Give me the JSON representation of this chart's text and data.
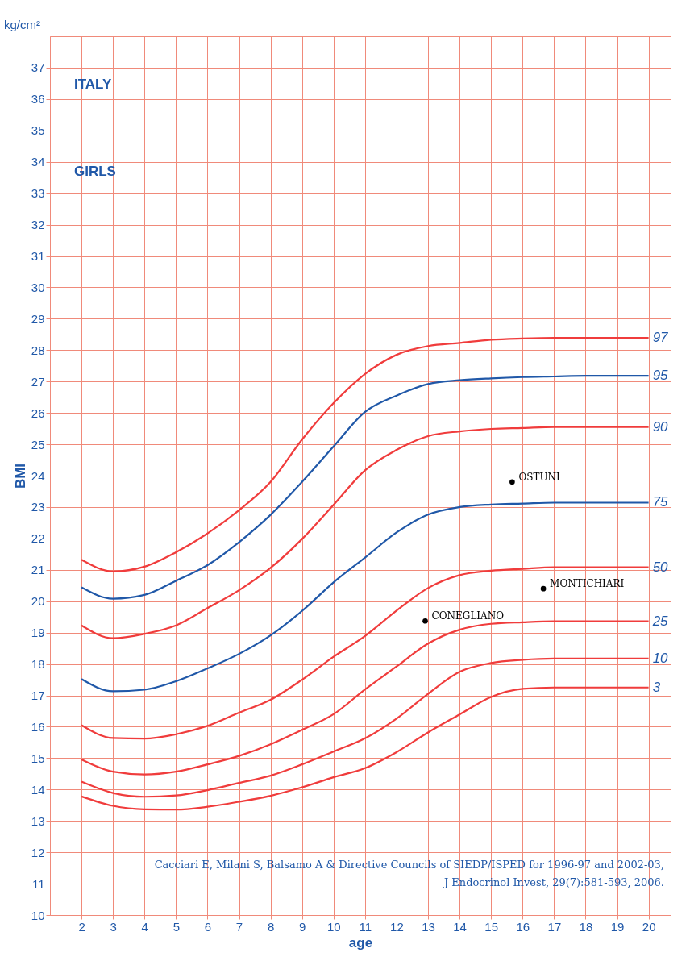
{
  "chart_data": {
    "type": "line",
    "xlabel": "age",
    "ylabel": "BMI",
    "annotations": [
      "kg/cm²",
      "ITALY",
      "GIRLS",
      "Cacciari E, Milani S, Balsamo A & Directive Councils of SIEDP/ISPED for 1996-97 and 2002-03,",
      "J Endocrinol Invest, 29(7):581-593, 2006."
    ],
    "x": [
      2,
      3,
      4,
      5,
      6,
      7,
      8,
      9,
      10,
      11,
      12,
      13,
      14,
      15,
      16,
      17,
      18,
      19,
      20
    ],
    "series": [
      {
        "name": "97",
        "color": "#f03c3c",
        "values": [
          21.32,
          20.95,
          21.1,
          21.56,
          22.16,
          22.9,
          23.8,
          25.15,
          26.31,
          27.24,
          27.85,
          28.13,
          28.23,
          28.33,
          28.37,
          28.39,
          28.39,
          28.39,
          28.39
        ]
      },
      {
        "name": "95",
        "color": "#2058a8",
        "values": [
          20.44,
          20.08,
          20.2,
          20.65,
          21.15,
          21.88,
          22.75,
          23.8,
          24.93,
          26.03,
          26.55,
          26.92,
          27.04,
          27.1,
          27.14,
          27.16,
          27.18,
          27.18,
          27.18
        ]
      },
      {
        "name": "90",
        "color": "#f03c3c",
        "values": [
          19.23,
          18.82,
          18.96,
          19.23,
          19.78,
          20.35,
          21.06,
          21.98,
          23.07,
          24.17,
          24.82,
          25.26,
          25.41,
          25.49,
          25.52,
          25.55,
          25.55,
          25.55,
          25.55
        ]
      },
      {
        "name": "75",
        "color": "#2058a8",
        "values": [
          17.52,
          17.13,
          17.18,
          17.45,
          17.86,
          18.32,
          18.91,
          19.69,
          20.6,
          21.39,
          22.19,
          22.76,
          23.0,
          23.08,
          23.11,
          23.14,
          23.14,
          23.14,
          23.14
        ]
      },
      {
        "name": "50",
        "color": "#f03c3c",
        "values": [
          16.05,
          15.64,
          15.62,
          15.76,
          16.03,
          16.45,
          16.86,
          17.5,
          18.23,
          18.89,
          19.7,
          20.42,
          20.83,
          20.97,
          21.03,
          21.08,
          21.08,
          21.08,
          21.08
        ]
      },
      {
        "name": "25",
        "color": "#f03c3c",
        "values": [
          14.96,
          14.57,
          14.48,
          14.57,
          14.8,
          15.07,
          15.44,
          15.9,
          16.4,
          17.19,
          17.92,
          18.65,
          19.09,
          19.28,
          19.33,
          19.36,
          19.36,
          19.36,
          19.36
        ]
      },
      {
        "name": "10",
        "color": "#f03c3c",
        "values": [
          14.25,
          13.89,
          13.77,
          13.81,
          13.98,
          14.21,
          14.44,
          14.8,
          15.21,
          15.63,
          16.26,
          17.05,
          17.75,
          18.03,
          18.13,
          18.17,
          18.17,
          18.17,
          18.17
        ]
      },
      {
        "name": "3",
        "color": "#f03c3c",
        "values": [
          13.78,
          13.48,
          13.37,
          13.36,
          13.45,
          13.61,
          13.8,
          14.07,
          14.39,
          14.68,
          15.19,
          15.82,
          16.39,
          16.95,
          17.21,
          17.25,
          17.25,
          17.25,
          17.25
        ]
      },
      {
        "name": "OSTUNI",
        "type": "scatter",
        "color": "#000000",
        "x": [
          15.67
        ],
        "values": [
          23.8
        ]
      },
      {
        "name": "MONTICHIARI",
        "type": "scatter",
        "color": "#000000",
        "x": [
          16.66
        ],
        "values": [
          20.4
        ]
      },
      {
        "name": "CONEGLIANO",
        "type": "scatter",
        "color": "#000000",
        "x": [
          12.91
        ],
        "values": [
          19.37
        ]
      }
    ],
    "xlim": [
      1,
      20.7
    ],
    "ylim": [
      10,
      38
    ],
    "xticks": [
      2,
      3,
      4,
      5,
      6,
      7,
      8,
      9,
      10,
      11,
      12,
      13,
      14,
      15,
      16,
      17,
      18,
      19,
      20
    ],
    "yticks": [
      10,
      11,
      12,
      13,
      14,
      15,
      16,
      17,
      18,
      19,
      20,
      21,
      22,
      23,
      24,
      25,
      26,
      27,
      28,
      29,
      30,
      31,
      32,
      33,
      34,
      35,
      36,
      37
    ],
    "grid": true,
    "legend": false,
    "marker": "none",
    "line_style": "solid"
  }
}
